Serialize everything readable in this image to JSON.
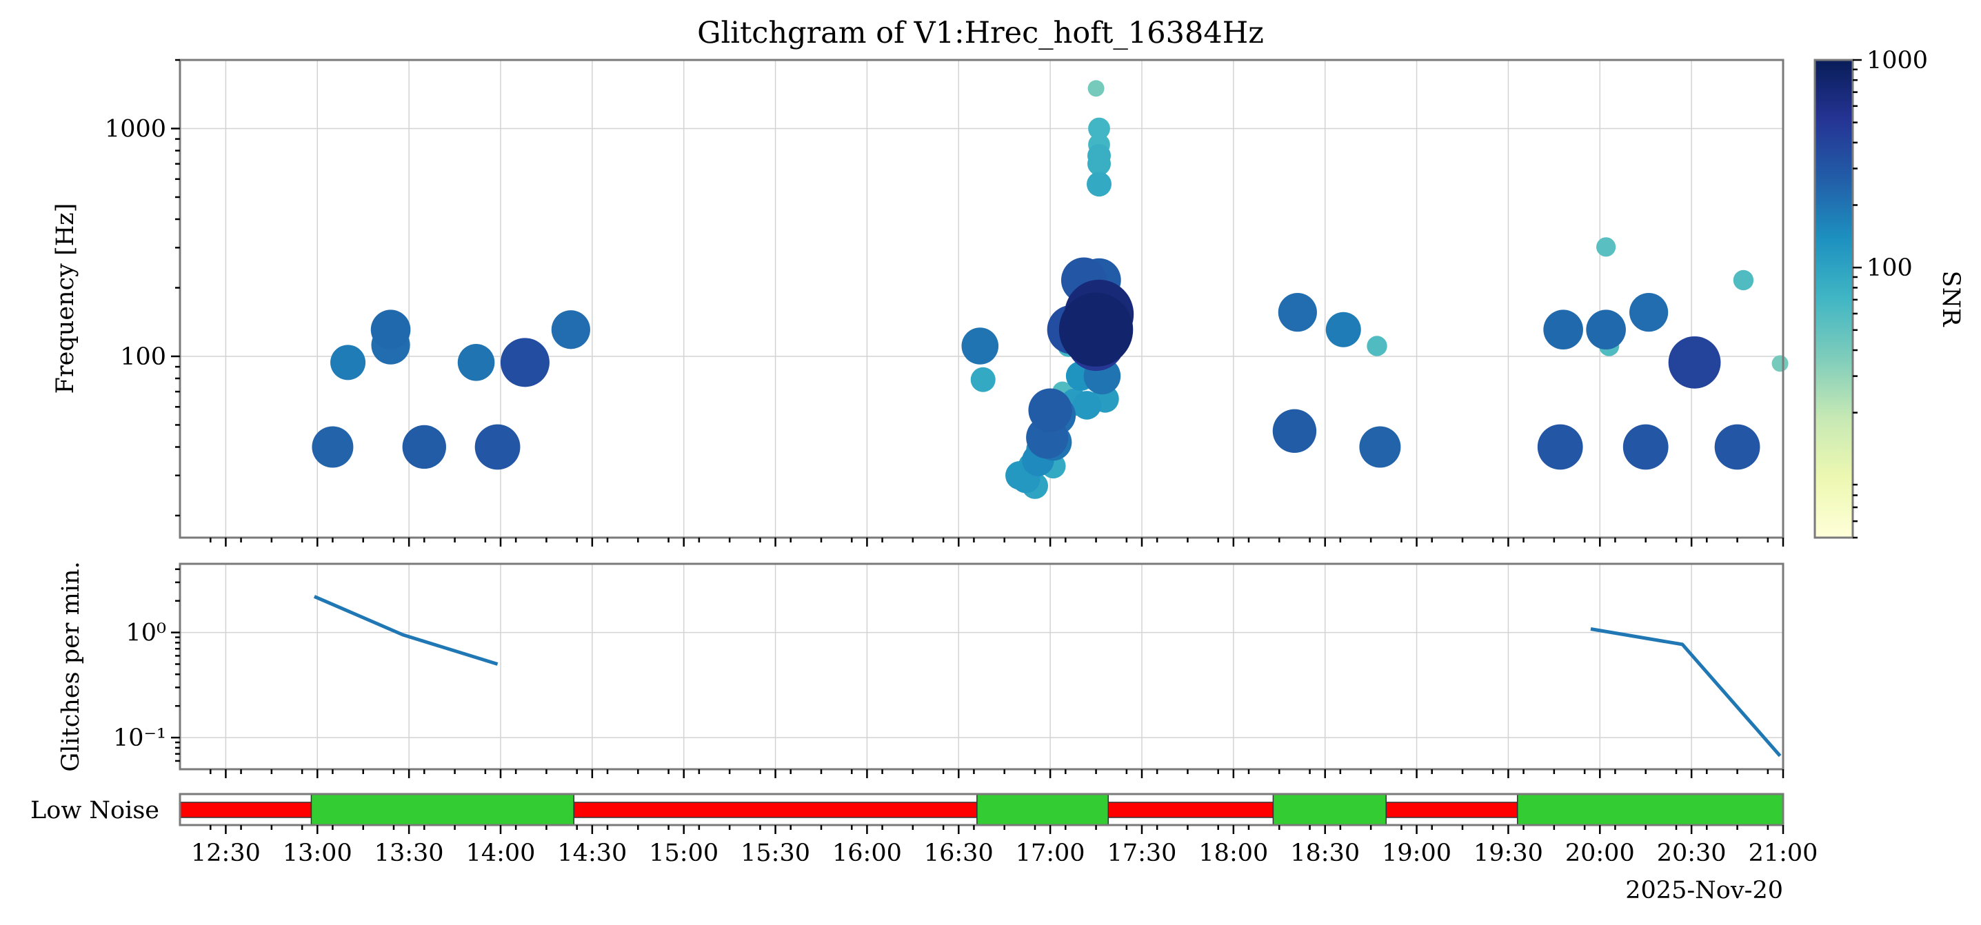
{
  "chart_data": [
    {
      "type": "scatter",
      "name": "glitchgram",
      "title": "Glitchgram of V1:Hrec_hoft_16384Hz",
      "ylabel": "Frequency [Hz]",
      "yscale": "log",
      "ylim": [
        16,
        2000
      ],
      "xlim": [
        "12:15",
        "21:00"
      ],
      "xticks": [
        "12:30",
        "13:00",
        "13:30",
        "14:00",
        "14:30",
        "15:00",
        "15:30",
        "16:00",
        "16:30",
        "17:00",
        "17:30",
        "18:00",
        "18:30",
        "19:00",
        "19:30",
        "20:00",
        "20:30",
        "21:00"
      ],
      "yticks": [
        "100",
        "1000"
      ],
      "grid": true,
      "colorbar": {
        "label": "SNR",
        "scale": "log",
        "range": [
          5,
          1000
        ],
        "ticks": [
          "100",
          "1000"
        ],
        "colormap": [
          "#ffffd9",
          "#edf8b1",
          "#c7e9b4",
          "#7fcdbb",
          "#41b6c4",
          "#1d91c0",
          "#225ea8",
          "#253494",
          "#081d58"
        ]
      },
      "points": [
        [
          "13:05",
          40,
          250
        ],
        [
          "13:10",
          94,
          180
        ],
        [
          "13:24",
          131,
          230
        ],
        [
          "13:24",
          112,
          220
        ],
        [
          "13:35",
          40,
          280
        ],
        [
          "13:52",
          94,
          200
        ],
        [
          "13:59",
          40,
          300
        ],
        [
          "14:08",
          94,
          350
        ],
        [
          "14:23",
          131,
          220
        ],
        [
          "16:37",
          111,
          200
        ],
        [
          "16:38",
          79,
          90
        ],
        [
          "16:50",
          30,
          120
        ],
        [
          "16:52",
          29,
          120
        ],
        [
          "16:54",
          33,
          110
        ],
        [
          "16:55",
          27,
          100
        ],
        [
          "16:56",
          35,
          150
        ],
        [
          "16:57",
          39,
          130
        ],
        [
          "16:58",
          57,
          80
        ],
        [
          "16:59",
          44,
          260
        ],
        [
          "17:00",
          58,
          280
        ],
        [
          "17:01",
          42,
          200
        ],
        [
          "17:02",
          55,
          220
        ],
        [
          "17:01",
          33,
          90
        ],
        [
          "17:04",
          70,
          60
        ],
        [
          "17:06",
          111,
          70
        ],
        [
          "17:07",
          131,
          350
        ],
        [
          "17:08",
          63,
          110
        ],
        [
          "17:10",
          82,
          130
        ],
        [
          "17:11",
          216,
          300
        ],
        [
          "17:12",
          61,
          120
        ],
        [
          "17:13",
          183,
          150
        ],
        [
          "17:15",
          131,
          800
        ],
        [
          "17:16",
          153,
          700
        ],
        [
          "17:15",
          116,
          500
        ],
        [
          "17:16",
          216,
          280
        ],
        [
          "17:17",
          82,
          200
        ],
        [
          "17:18",
          65,
          110
        ],
        [
          "17:16",
          570,
          90
        ],
        [
          "17:16",
          700,
          80
        ],
        [
          "17:16",
          760,
          80
        ],
        [
          "17:16",
          850,
          70
        ],
        [
          "17:16",
          1000,
          70
        ],
        [
          "17:15",
          1500,
          40
        ],
        [
          "18:20",
          47,
          280
        ],
        [
          "18:21",
          156,
          220
        ],
        [
          "18:36",
          131,
          180
        ],
        [
          "18:47",
          111,
          60
        ],
        [
          "18:48",
          40,
          250
        ],
        [
          "19:47",
          40,
          300
        ],
        [
          "19:48",
          131,
          230
        ],
        [
          "20:02",
          131,
          230
        ],
        [
          "20:03",
          111,
          60
        ],
        [
          "20:02",
          302,
          55
        ],
        [
          "20:15",
          40,
          300
        ],
        [
          "20:16",
          156,
          220
        ],
        [
          "20:31",
          94,
          400
        ],
        [
          "20:45",
          40,
          300
        ],
        [
          "20:47",
          216,
          60
        ],
        [
          "20:59",
          93,
          40
        ]
      ]
    },
    {
      "type": "line",
      "name": "glitch-rate",
      "ylabel": "Glitches per min.",
      "yscale": "log",
      "yticks": [
        "10⁻¹",
        "10⁰"
      ],
      "ylim": [
        0.05,
        4.5
      ],
      "series": [
        {
          "x": [
            "12:59",
            "13:28",
            "13:59"
          ],
          "values": [
            2.2,
            0.95,
            0.5
          ]
        },
        {
          "x": [
            "19:57",
            "20:27",
            "20:59"
          ],
          "values": [
            1.08,
            0.77,
            0.067
          ]
        }
      ]
    },
    {
      "type": "bar",
      "name": "segments",
      "label": "Low Noise",
      "xlabel": "2025-Nov-20",
      "on_color": "#33cc33",
      "off_color": "#ff0000",
      "segments": [
        [
          "12:15",
          "12:58",
          false
        ],
        [
          "12:58",
          "14:24",
          true
        ],
        [
          "14:24",
          "16:36",
          false
        ],
        [
          "16:36",
          "17:19",
          true
        ],
        [
          "17:19",
          "18:13",
          false
        ],
        [
          "18:13",
          "18:50",
          true
        ],
        [
          "18:50",
          "19:33",
          false
        ],
        [
          "19:33",
          "21:00",
          true
        ]
      ]
    }
  ]
}
